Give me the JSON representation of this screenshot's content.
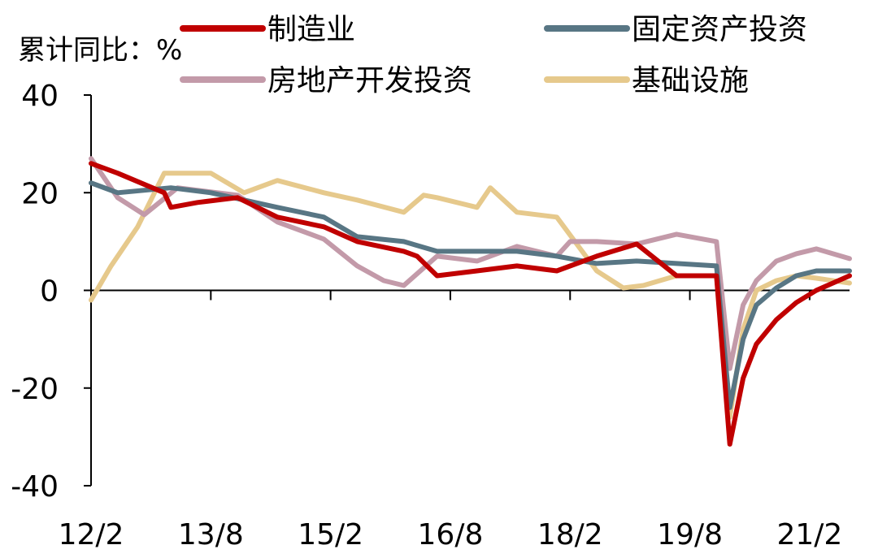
{
  "unit_label": "累计同比：%",
  "chart_data": {
    "type": "line",
    "ylabel": "累计同比：%",
    "ylim": [
      -40,
      40
    ],
    "yticks": [
      40,
      20,
      0,
      -20,
      -40
    ],
    "x_tick_labels": [
      "12/2",
      "13/8",
      "15/2",
      "16/8",
      "18/2",
      "19/8",
      "21/2"
    ],
    "legend_position": "top",
    "series": [
      {
        "name": "制造业",
        "color": "#c00000",
        "x": [
          "2012-02",
          "2012-06",
          "2013-01",
          "2013-02",
          "2013-06",
          "2013-12",
          "2014-06",
          "2015-01",
          "2015-06",
          "2016-01",
          "2016-03",
          "2016-06",
          "2016-12",
          "2017-06",
          "2017-12",
          "2018-06",
          "2018-12",
          "2019-06",
          "2019-12",
          "2020-02",
          "2020-04",
          "2020-06",
          "2020-09",
          "2020-12",
          "2021-03",
          "2021-08"
        ],
        "values": [
          26,
          24,
          20,
          17,
          18,
          19,
          15,
          13,
          10,
          8,
          7,
          3,
          4,
          5,
          4,
          7,
          9.5,
          3,
          3,
          -31.5,
          -18,
          -11,
          -6,
          -2.5,
          0,
          3
        ]
      },
      {
        "name": "固定资产投资",
        "color": "#587684",
        "x": [
          "2012-02",
          "2012-06",
          "2013-02",
          "2013-08",
          "2014-06",
          "2015-01",
          "2015-06",
          "2016-01",
          "2016-06",
          "2016-12",
          "2017-06",
          "2017-12",
          "2018-06",
          "2018-12",
          "2019-06",
          "2019-12",
          "2020-02",
          "2020-04",
          "2020-06",
          "2020-09",
          "2020-12",
          "2021-03",
          "2021-08"
        ],
        "values": [
          22,
          20,
          21,
          20,
          17,
          15,
          11,
          10,
          8,
          8,
          8,
          7,
          5.5,
          6,
          5.5,
          5,
          -24,
          -10,
          -3,
          0.5,
          3,
          4,
          4
        ]
      },
      {
        "name": "房地产开发投资",
        "color": "#c39aa9",
        "x": [
          "2012-02",
          "2012-06",
          "2012-10",
          "2013-03",
          "2013-12",
          "2014-06",
          "2015-01",
          "2015-06",
          "2015-10",
          "2016-01",
          "2016-06",
          "2016-12",
          "2017-06",
          "2017-12",
          "2018-02",
          "2018-06",
          "2018-12",
          "2019-06",
          "2019-12",
          "2020-02",
          "2020-04",
          "2020-06",
          "2020-09",
          "2020-12",
          "2021-03",
          "2021-08"
        ],
        "values": [
          27,
          19,
          15.5,
          21,
          19.5,
          14,
          10.5,
          5,
          2,
          1,
          7,
          6,
          9,
          7,
          10,
          10,
          9.5,
          11.5,
          10,
          -16,
          -3,
          2,
          6,
          7.5,
          8.5,
          6.5
        ]
      },
      {
        "name": "基础设施",
        "color": "#e6c98c",
        "x": [
          "2012-02",
          "2012-05",
          "2012-09",
          "2013-01",
          "2013-03",
          "2013-08",
          "2014-01",
          "2014-06",
          "2015-01",
          "2015-06",
          "2016-01",
          "2016-04",
          "2016-06",
          "2016-12",
          "2017-02",
          "2017-06",
          "2017-12",
          "2018-06",
          "2018-10",
          "2019-01",
          "2019-06",
          "2019-12",
          "2020-02",
          "2020-04",
          "2020-06",
          "2020-09",
          "2020-12",
          "2021-03",
          "2021-08"
        ],
        "values": [
          -2,
          5,
          13,
          24,
          24,
          24,
          20,
          22.5,
          20,
          18.5,
          16,
          19.5,
          19,
          17,
          21,
          16,
          15,
          4,
          0.5,
          1,
          3,
          3,
          -26,
          -8,
          0,
          2,
          3,
          2.5,
          1.5
        ]
      }
    ]
  }
}
